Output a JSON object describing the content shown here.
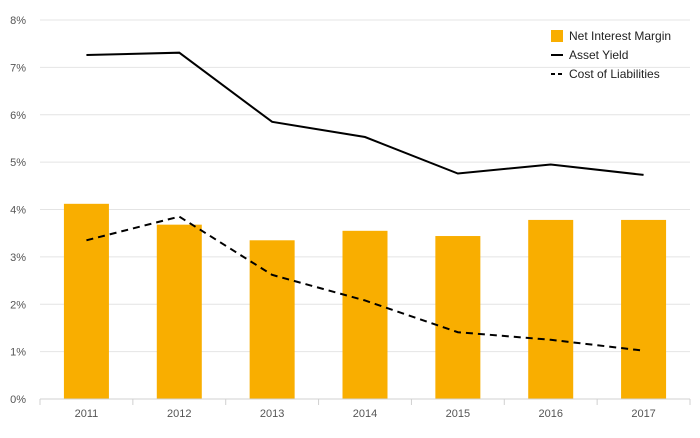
{
  "chart_data": {
    "type": "bar",
    "title": "",
    "xlabel": "",
    "ylabel": "",
    "categories": [
      "2011",
      "2012",
      "2013",
      "2014",
      "2015",
      "2016",
      "2017"
    ],
    "ylim": [
      0,
      8
    ],
    "yticks": [
      0,
      1,
      2,
      3,
      4,
      5,
      6,
      7,
      8
    ],
    "ytick_labels": [
      "0%",
      "1%",
      "2%",
      "3%",
      "4%",
      "5%",
      "6%",
      "7%",
      "8%"
    ],
    "grid": true,
    "legend_position": "top-right",
    "series": [
      {
        "name": "Net Interest Margin",
        "type": "bar",
        "color": "#F9AE00",
        "values": [
          4.12,
          3.68,
          3.35,
          3.55,
          3.44,
          3.78,
          3.78
        ]
      },
      {
        "name": "Asset Yield",
        "type": "line",
        "style": "solid",
        "color": "#000000",
        "values": [
          7.26,
          7.31,
          5.85,
          5.53,
          4.76,
          4.95,
          4.73
        ]
      },
      {
        "name": "Cost of Liabilities",
        "type": "line",
        "style": "dashed",
        "color": "#000000",
        "values": [
          3.35,
          3.85,
          2.62,
          2.08,
          1.41,
          1.25,
          1.02
        ]
      }
    ]
  }
}
